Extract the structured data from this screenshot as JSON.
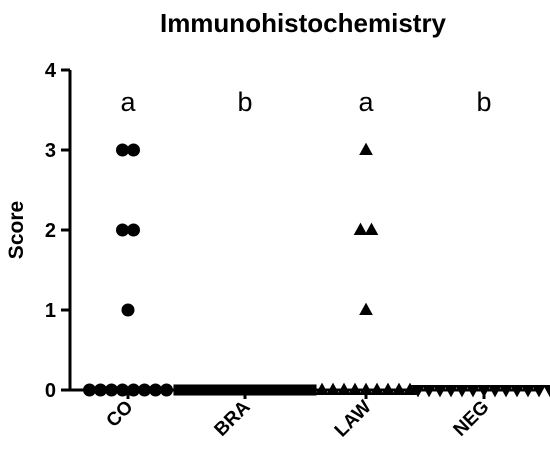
{
  "chart_data": {
    "type": "scatter",
    "title": "Immunohistochemistry",
    "ylabel": "Score",
    "xlabel": "",
    "ylim": [
      0,
      4
    ],
    "yticks": [
      "0",
      "1",
      "2",
      "3",
      "4"
    ],
    "categories": [
      "CO",
      "BRA",
      "LAW",
      "NEG"
    ],
    "series": [
      {
        "category": "CO",
        "marker": "circle",
        "values": [
          3,
          3,
          2,
          2,
          1,
          0,
          0,
          0,
          0,
          0,
          0,
          0,
          0
        ]
      },
      {
        "category": "BRA",
        "marker": "square",
        "values": [
          0,
          0,
          0,
          0,
          0,
          0,
          0,
          0,
          0,
          0,
          0,
          0,
          0
        ]
      },
      {
        "category": "LAW",
        "marker": "triangle-up",
        "values": [
          3,
          2,
          2,
          1,
          0,
          0,
          0,
          0,
          0,
          0,
          0,
          0,
          0
        ]
      },
      {
        "category": "NEG",
        "marker": "triangle-down",
        "values": [
          0,
          0,
          0,
          0,
          0,
          0,
          0,
          0,
          0,
          0,
          0,
          0,
          0
        ]
      }
    ],
    "annotations": [
      "a",
      "b",
      "a",
      "b"
    ],
    "annotation_level": 3.6,
    "marker_color": "#000000",
    "grid": false
  }
}
